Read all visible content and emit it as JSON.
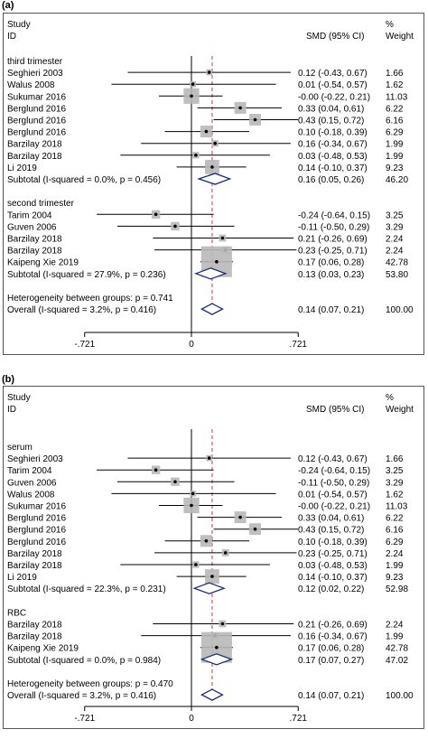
{
  "panels": [
    {
      "label": "(a)",
      "header": {
        "study": "Study",
        "id": "ID",
        "smd": "SMD (95% CI)",
        "pct": "%",
        "weight": "Weight"
      },
      "axis": {
        "ticks": [
          -0.721,
          0,
          0.721
        ],
        "tick_labels": [
          "-.721",
          "0",
          ".721"
        ],
        "xlim": [
          -0.721,
          0.721
        ]
      },
      "overall_effect": 0.14,
      "rows": [
        {
          "kind": "group",
          "label": "third trimester"
        },
        {
          "kind": "study",
          "label": "Seghieri 2003",
          "est": 0.12,
          "lo": -0.43,
          "hi": 0.67,
          "ci": "0.12 (-0.43, 0.67)",
          "weight": "1.66",
          "w": 1.66
        },
        {
          "kind": "study",
          "label": "Walus 2008",
          "est": 0.01,
          "lo": -0.54,
          "hi": 0.57,
          "ci": "0.01 (-0.54, 0.57)",
          "weight": "1.62",
          "w": 1.62
        },
        {
          "kind": "study",
          "label": "Sukumar 2016",
          "est": -0.0,
          "lo": -0.22,
          "hi": 0.21,
          "ci": "-0.00 (-0.22, 0.21)",
          "weight": "11.03",
          "w": 11.03
        },
        {
          "kind": "study",
          "label": "Berglund 2016",
          "est": 0.33,
          "lo": 0.04,
          "hi": 0.61,
          "ci": "0.33 (0.04, 0.61)",
          "weight": "6.22",
          "w": 6.22
        },
        {
          "kind": "study",
          "label": "Berglund 2016",
          "est": 0.43,
          "lo": 0.15,
          "hi": 0.72,
          "ci": "0.43 (0.15, 0.72)",
          "weight": "6.16",
          "w": 6.16
        },
        {
          "kind": "study",
          "label": "Berglund 2016",
          "est": 0.1,
          "lo": -0.18,
          "hi": 0.39,
          "ci": "0.10 (-0.18, 0.39)",
          "weight": "6.29",
          "w": 6.29
        },
        {
          "kind": "study",
          "label": "Barzilay 2018",
          "est": 0.16,
          "lo": -0.34,
          "hi": 0.67,
          "ci": "0.16 (-0.34, 0.67)",
          "weight": "1.99",
          "w": 1.99
        },
        {
          "kind": "study",
          "label": "Barzilay 2018",
          "est": 0.03,
          "lo": -0.48,
          "hi": 0.53,
          "ci": "0.03 (-0.48, 0.53)",
          "weight": "1.99",
          "w": 1.99
        },
        {
          "kind": "study",
          "label": "Li 2019",
          "est": 0.14,
          "lo": -0.1,
          "hi": 0.37,
          "ci": "0.14 (-0.10, 0.37)",
          "weight": "9.23",
          "w": 9.23
        },
        {
          "kind": "subtotal",
          "label": "Subtotal  (I-squared = 0.0%, p = 0.456)",
          "est": 0.16,
          "lo": 0.05,
          "hi": 0.26,
          "ci": "0.16 (0.05, 0.26)",
          "weight": "46.20"
        },
        {
          "kind": "blank"
        },
        {
          "kind": "group",
          "label": "second trimester"
        },
        {
          "kind": "study",
          "label": "Tarim 2004",
          "est": -0.24,
          "lo": -0.64,
          "hi": 0.15,
          "ci": "-0.24 (-0.64, 0.15)",
          "weight": "3.25",
          "w": 3.25
        },
        {
          "kind": "study",
          "label": "Guven 2006",
          "est": -0.11,
          "lo": -0.5,
          "hi": 0.29,
          "ci": "-0.11 (-0.50, 0.29)",
          "weight": "3.29",
          "w": 3.29
        },
        {
          "kind": "study",
          "label": "Barzilay 2018",
          "est": 0.21,
          "lo": -0.26,
          "hi": 0.69,
          "ci": "0.21 (-0.26, 0.69)",
          "weight": "2.24",
          "w": 2.24
        },
        {
          "kind": "study",
          "label": "Barzilay 2018",
          "est": 0.23,
          "lo": -0.25,
          "hi": 0.71,
          "ci": "0.23 (-0.25, 0.71)",
          "weight": "2.24",
          "w": 2.24
        },
        {
          "kind": "study",
          "label": "Kaipeng Xie 2019",
          "est": 0.17,
          "lo": 0.06,
          "hi": 0.28,
          "ci": "0.17 (0.06, 0.28)",
          "weight": "42.78",
          "w": 42.78
        },
        {
          "kind": "subtotal",
          "label": "Subtotal  (I-squared = 27.9%, p = 0.236)",
          "est": 0.13,
          "lo": 0.03,
          "hi": 0.23,
          "ci": "0.13 (0.03, 0.23)",
          "weight": "53.80"
        },
        {
          "kind": "blank"
        },
        {
          "kind": "text",
          "label": "Heterogeneity between groups: p = 0.741"
        },
        {
          "kind": "overall",
          "label": "Overall  (I-squared = 3.2%, p = 0.416)",
          "est": 0.14,
          "lo": 0.07,
          "hi": 0.21,
          "ci": "0.14 (0.07, 0.21)",
          "weight": "100.00"
        }
      ]
    },
    {
      "label": "(b)",
      "header": {
        "study": "Study",
        "id": "ID",
        "smd": "SMD (95% CI)",
        "pct": "%",
        "weight": "Weight"
      },
      "axis": {
        "ticks": [
          -0.721,
          0,
          0.721
        ],
        "tick_labels": [
          "-.721",
          "0",
          ".721"
        ],
        "xlim": [
          -0.721,
          0.721
        ]
      },
      "overall_effect": 0.14,
      "rows": [
        {
          "kind": "group",
          "label": "serum"
        },
        {
          "kind": "study",
          "label": "Seghieri 2003",
          "est": 0.12,
          "lo": -0.43,
          "hi": 0.67,
          "ci": "0.12 (-0.43, 0.67)",
          "weight": "1.66",
          "w": 1.66
        },
        {
          "kind": "study",
          "label": "Tarim 2004",
          "est": -0.24,
          "lo": -0.64,
          "hi": 0.15,
          "ci": "-0.24 (-0.64, 0.15)",
          "weight": "3.25",
          "w": 3.25
        },
        {
          "kind": "study",
          "label": "Guven 2006",
          "est": -0.11,
          "lo": -0.5,
          "hi": 0.29,
          "ci": "-0.11 (-0.50, 0.29)",
          "weight": "3.29",
          "w": 3.29
        },
        {
          "kind": "study",
          "label": "Walus 2008",
          "est": 0.01,
          "lo": -0.54,
          "hi": 0.57,
          "ci": "0.01 (-0.54, 0.57)",
          "weight": "1.62",
          "w": 1.62
        },
        {
          "kind": "study",
          "label": "Sukumar 2016",
          "est": -0.0,
          "lo": -0.22,
          "hi": 0.21,
          "ci": "-0.00 (-0.22, 0.21)",
          "weight": "11.03",
          "w": 11.03
        },
        {
          "kind": "study",
          "label": "Berglund 2016",
          "est": 0.33,
          "lo": 0.04,
          "hi": 0.61,
          "ci": "0.33 (0.04, 0.61)",
          "weight": "6.22",
          "w": 6.22
        },
        {
          "kind": "study",
          "label": "Berglund 2016",
          "est": 0.43,
          "lo": 0.15,
          "hi": 0.72,
          "ci": "0.43 (0.15, 0.72)",
          "weight": "6.16",
          "w": 6.16
        },
        {
          "kind": "study",
          "label": "Berglund 2016",
          "est": 0.1,
          "lo": -0.18,
          "hi": 0.39,
          "ci": "0.10 (-0.18, 0.39)",
          "weight": "6.29",
          "w": 6.29
        },
        {
          "kind": "study",
          "label": "Barzilay 2018",
          "est": 0.23,
          "lo": -0.25,
          "hi": 0.71,
          "ci": "0.23 (-0.25, 0.71)",
          "weight": "2.24",
          "w": 2.24
        },
        {
          "kind": "study",
          "label": "Barzilay 2018",
          "est": 0.03,
          "lo": -0.48,
          "hi": 0.53,
          "ci": "0.03 (-0.48, 0.53)",
          "weight": "1.99",
          "w": 1.99
        },
        {
          "kind": "study",
          "label": "Li 2019",
          "est": 0.14,
          "lo": -0.1,
          "hi": 0.37,
          "ci": "0.14 (-0.10, 0.37)",
          "weight": "9.23",
          "w": 9.23
        },
        {
          "kind": "subtotal",
          "label": "Subtotal  (I-squared = 22.3%, p = 0.231)",
          "est": 0.12,
          "lo": 0.02,
          "hi": 0.22,
          "ci": "0.12 (0.02, 0.22)",
          "weight": "52.98"
        },
        {
          "kind": "blank"
        },
        {
          "kind": "group",
          "label": "RBC"
        },
        {
          "kind": "study",
          "label": "Barzilay 2018",
          "est": 0.21,
          "lo": -0.26,
          "hi": 0.69,
          "ci": "0.21 (-0.26, 0.69)",
          "weight": "2.24",
          "w": 2.24
        },
        {
          "kind": "study",
          "label": "Barzilay 2018",
          "est": 0.16,
          "lo": -0.34,
          "hi": 0.67,
          "ci": "0.16 (-0.34, 0.67)",
          "weight": "1.99",
          "w": 1.99
        },
        {
          "kind": "study",
          "label": "Kaipeng Xie 2019",
          "est": 0.17,
          "lo": 0.06,
          "hi": 0.28,
          "ci": "0.17 (0.06, 0.28)",
          "weight": "42.78",
          "w": 42.78
        },
        {
          "kind": "subtotal",
          "label": "Subtotal  (I-squared = 0.0%, p = 0.984)",
          "est": 0.17,
          "lo": 0.07,
          "hi": 0.27,
          "ci": "0.17 (0.07, 0.27)",
          "weight": "47.02"
        },
        {
          "kind": "blank"
        },
        {
          "kind": "text",
          "label": "Heterogeneity between groups: p = 0.470"
        },
        {
          "kind": "overall",
          "label": "Overall  (I-squared = 3.2%, p = 0.416)",
          "est": 0.14,
          "lo": 0.07,
          "hi": 0.21,
          "ci": "0.14 (0.07, 0.21)",
          "weight": "100.00"
        }
      ]
    }
  ],
  "colors": {
    "ink": "#000000",
    "box": "#b8b8b8",
    "diamond": "#1a2a7a",
    "ref_line": "#c83c3c",
    "frame": "#555555"
  },
  "chart_data": [
    {
      "type": "forest",
      "title": "(a)",
      "xlabel": "",
      "ylabel": "",
      "xlim": [
        -0.721,
        0.721
      ],
      "ticks": [
        -0.721,
        0,
        0.721
      ],
      "groups": [
        {
          "name": "third trimester",
          "studies": [
            "Seghieri 2003",
            "Walus 2008",
            "Sukumar 2016",
            "Berglund 2016",
            "Berglund 2016",
            "Berglund 2016",
            "Barzilay 2018",
            "Barzilay 2018",
            "Li 2019"
          ],
          "subtotal": {
            "est": 0.16,
            "lo": 0.05,
            "hi": 0.26,
            "weight": 46.2
          }
        },
        {
          "name": "second trimester",
          "studies": [
            "Tarim 2004",
            "Guven 2006",
            "Barzilay 2018",
            "Barzilay 2018",
            "Kaipeng Xie 2019"
          ],
          "subtotal": {
            "est": 0.13,
            "lo": 0.03,
            "hi": 0.23,
            "weight": 53.8
          }
        }
      ],
      "overall": {
        "est": 0.14,
        "lo": 0.07,
        "hi": 0.21,
        "weight": 100.0
      }
    },
    {
      "type": "forest",
      "title": "(b)",
      "xlabel": "",
      "ylabel": "",
      "xlim": [
        -0.721,
        0.721
      ],
      "ticks": [
        -0.721,
        0,
        0.721
      ],
      "groups": [
        {
          "name": "serum",
          "studies": [
            "Seghieri 2003",
            "Tarim 2004",
            "Guven 2006",
            "Walus 2008",
            "Sukumar 2016",
            "Berglund 2016",
            "Berglund 2016",
            "Berglund 2016",
            "Barzilay 2018",
            "Barzilay 2018",
            "Li 2019"
          ],
          "subtotal": {
            "est": 0.12,
            "lo": 0.02,
            "hi": 0.22,
            "weight": 52.98
          }
        },
        {
          "name": "RBC",
          "studies": [
            "Barzilay 2018",
            "Barzilay 2018",
            "Kaipeng Xie 2019"
          ],
          "subtotal": {
            "est": 0.17,
            "lo": 0.07,
            "hi": 0.27,
            "weight": 47.02
          }
        }
      ],
      "overall": {
        "est": 0.14,
        "lo": 0.07,
        "hi": 0.21,
        "weight": 100.0
      }
    }
  ]
}
